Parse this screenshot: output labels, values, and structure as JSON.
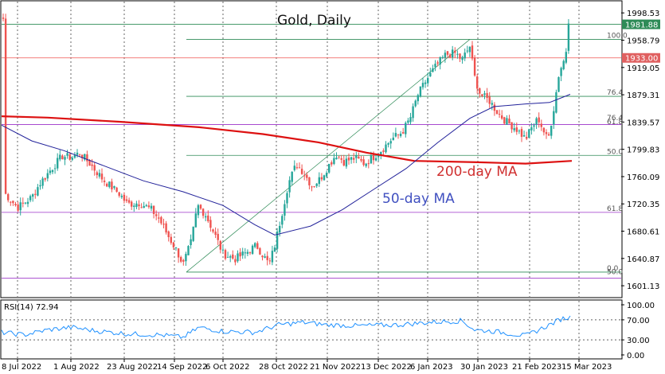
{
  "chart_data": {
    "type": "candlestick",
    "title": "Gold, Daily",
    "y_range": [
      1585,
      2015
    ],
    "y_ticks": [
      "1998.53",
      "1958.79",
      "1919.05",
      "1879.31",
      "1839.57",
      "1799.83",
      "1760.09",
      "1720.35",
      "1680.61",
      "1640.87",
      "1601.13"
    ],
    "x_ticks": [
      "8 Jul 2022",
      "1 Aug 2022",
      "23 Aug 2022",
      "14 Sep 2022",
      "6 Oct 2022",
      "28 Oct 2022",
      "21 Nov 2022",
      "13 Dec 2022",
      "6 Jan 2023",
      "30 Jan 2023",
      "21 Feb 2023",
      "15 Mar 2023"
    ],
    "price_tags": [
      {
        "label": "1981.88",
        "value": 1981.88,
        "color": "#2e8b57"
      },
      {
        "label": "1933.00",
        "value": 1933.0,
        "color": "#e06060"
      }
    ],
    "fib_levels": [
      {
        "label": "100.0",
        "value": 1960
      },
      {
        "label": "76.4",
        "value": 1877
      },
      {
        "label": "76.4",
        "value": 1840
      },
      {
        "label": "61.8",
        "value": 1834
      },
      {
        "label": "50.0",
        "value": 1791
      },
      {
        "label": "61.8",
        "value": 1708
      },
      {
        "label": "0.0",
        "value": 1621
      },
      {
        "label": "50.0",
        "value": 1616
      }
    ],
    "annotations": [
      {
        "text": "200-day MA",
        "color": "#d03030"
      },
      {
        "text": "50-day MA",
        "color": "#4050c0"
      }
    ],
    "rsi": {
      "label": "RSI(14) 72.94",
      "ticks": [
        "100.00",
        "70.00",
        "30.00",
        "0.00"
      ]
    },
    "colors": {
      "up": "#26a69a",
      "down": "#ef5350",
      "ma200": "#dd1111",
      "ma50": "#22229a",
      "rsi": "#1e90ff",
      "grid": "#000000",
      "green_line": "#2e8b57",
      "purple_line": "#9b30c8"
    }
  }
}
